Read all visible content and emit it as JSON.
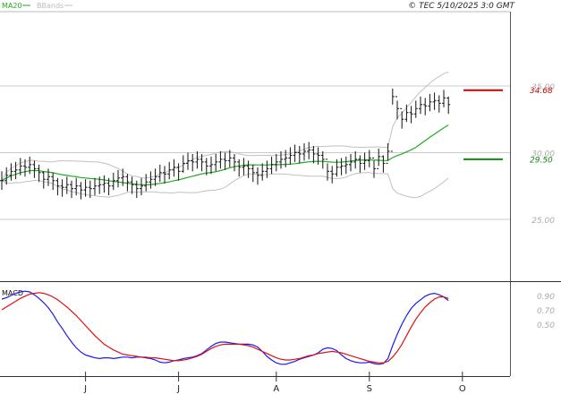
{
  "header": {
    "legend_ma20": "MA20",
    "legend_bbands": "BBands",
    "copyright": "© TEC 5/10/2025 3:0 GMT"
  },
  "macd_panel": {
    "title": "MACD"
  },
  "colors": {
    "bars": "#111111",
    "ma20": "#22aa22",
    "bbands": "#c0c0c0",
    "macd": "#1a1aee",
    "signal": "#dd1111",
    "resistance": "#cc0000",
    "support": "#118811",
    "grid": "#cccccc",
    "axis_text": "#aaaaaa"
  },
  "chart_data": [
    {
      "type": "ohlc",
      "ylim": [
        20.5,
        40.5
      ],
      "y_ticks": [
        "25.00",
        "30.00",
        "35.00"
      ],
      "y_tick_values": [
        25,
        30,
        35
      ],
      "x_ticks": [
        "J",
        "J",
        "A",
        "S",
        "O"
      ],
      "x_tick_index": [
        18,
        38,
        59,
        79,
        99
      ],
      "levels": [
        {
          "name": "resistance",
          "value": 34.68,
          "label": "34.68"
        },
        {
          "name": "support",
          "value": 29.5,
          "label": "29.50"
        }
      ],
      "close": [
        27.9,
        28.3,
        28.6,
        28.7,
        29.0,
        28.9,
        29.1,
        28.8,
        28.5,
        28.0,
        28.2,
        27.9,
        27.5,
        27.4,
        27.6,
        27.3,
        27.5,
        27.2,
        27.4,
        27.3,
        27.5,
        27.6,
        27.7,
        27.5,
        27.9,
        28.1,
        28.2,
        27.8,
        27.6,
        27.3,
        27.5,
        27.8,
        28.0,
        28.2,
        28.5,
        28.4,
        28.7,
        28.9,
        28.6,
        29.2,
        29.4,
        29.3,
        29.5,
        29.3,
        29.0,
        29.1,
        29.3,
        29.5,
        29.4,
        29.6,
        29.3,
        28.9,
        29.0,
        28.8,
        28.5,
        28.3,
        28.6,
        28.8,
        29.1,
        29.3,
        29.5,
        29.6,
        29.8,
        30.0,
        29.9,
        30.1,
        30.2,
        29.9,
        29.8,
        29.5,
        28.6,
        28.4,
        28.9,
        29.0,
        29.1,
        29.3,
        29.5,
        29.2,
        29.4,
        29.6,
        28.8,
        29.7,
        29.2,
        30.1,
        34.2,
        33.3,
        32.5,
        33.0,
        32.9,
        33.3,
        33.6,
        33.5,
        33.8,
        33.9,
        33.7,
        34.1,
        33.6
      ],
      "high": [
        28.6,
        28.9,
        29.2,
        29.3,
        29.6,
        29.5,
        29.7,
        29.4,
        29.1,
        28.6,
        28.8,
        28.5,
        28.1,
        28.0,
        28.2,
        27.9,
        28.1,
        27.8,
        28.0,
        27.9,
        28.1,
        28.2,
        28.3,
        28.1,
        28.5,
        28.7,
        28.8,
        28.4,
        28.2,
        27.9,
        28.1,
        28.4,
        28.6,
        28.8,
        29.1,
        29.0,
        29.3,
        29.5,
        29.2,
        29.8,
        30.0,
        29.9,
        30.1,
        29.9,
        29.6,
        29.7,
        29.9,
        30.1,
        30.0,
        30.2,
        29.9,
        29.5,
        29.6,
        29.4,
        29.1,
        28.9,
        29.2,
        29.4,
        29.7,
        29.9,
        30.1,
        30.2,
        30.4,
        30.6,
        30.5,
        30.7,
        30.8,
        30.5,
        30.4,
        30.1,
        29.2,
        29.0,
        29.5,
        29.6,
        29.7,
        29.9,
        30.1,
        29.8,
        30.0,
        30.2,
        29.4,
        30.3,
        29.8,
        30.7,
        34.8,
        33.9,
        33.1,
        33.6,
        33.5,
        33.9,
        34.2,
        34.1,
        34.4,
        34.5,
        34.3,
        34.7,
        34.2
      ],
      "low": [
        27.2,
        27.6,
        27.9,
        28.0,
        28.3,
        28.2,
        28.4,
        28.1,
        27.8,
        27.3,
        27.5,
        27.2,
        26.8,
        26.7,
        26.9,
        26.6,
        26.8,
        26.5,
        26.7,
        26.6,
        26.8,
        26.9,
        27.0,
        26.8,
        27.2,
        27.4,
        27.5,
        27.1,
        26.9,
        26.6,
        26.8,
        27.1,
        27.3,
        27.5,
        27.8,
        27.7,
        28.0,
        28.2,
        27.9,
        28.5,
        28.7,
        28.6,
        28.8,
        28.6,
        28.3,
        28.4,
        28.6,
        28.8,
        28.7,
        28.9,
        28.6,
        28.2,
        28.3,
        28.1,
        27.8,
        27.6,
        27.9,
        28.1,
        28.4,
        28.6,
        28.8,
        28.9,
        29.1,
        29.3,
        29.2,
        29.4,
        29.5,
        29.2,
        29.1,
        28.8,
        27.9,
        27.7,
        28.2,
        28.3,
        28.4,
        28.6,
        28.8,
        28.5,
        28.7,
        28.9,
        28.1,
        29.0,
        28.5,
        29.4,
        33.6,
        32.5,
        31.8,
        32.3,
        32.2,
        32.6,
        32.9,
        32.8,
        33.1,
        33.2,
        33.0,
        33.4,
        32.9
      ]
    },
    {
      "type": "line",
      "title": "MACD",
      "ylim": [
        -0.2,
        1.05
      ],
      "y_ticks": [
        "0.90",
        "0.70",
        "0.50"
      ],
      "y_tick_values": [
        0.9,
        0.7,
        0.5
      ],
      "series": [
        {
          "values": [
            0.85,
            0.87,
            0.9,
            0.93,
            0.95,
            0.96,
            0.95,
            0.91,
            0.86,
            0.8,
            0.73,
            0.64,
            0.53,
            0.44,
            0.34,
            0.25,
            0.17,
            0.11,
            0.07,
            0.05,
            0.03,
            0.02,
            0.03,
            0.03,
            0.02,
            0.03,
            0.04,
            0.04,
            0.03,
            0.04,
            0.04,
            0.03,
            0.02,
            0.0,
            -0.03,
            -0.04,
            -0.03,
            -0.01,
            0.0,
            0.02,
            0.03,
            0.04,
            0.06,
            0.09,
            0.14,
            0.19,
            0.23,
            0.25,
            0.25,
            0.24,
            0.23,
            0.22,
            0.22,
            0.22,
            0.21,
            0.18,
            0.12,
            0.05,
            0.0,
            -0.04,
            -0.06,
            -0.06,
            -0.04,
            -0.02,
            0.01,
            0.03,
            0.05,
            0.07,
            0.1,
            0.15,
            0.17,
            0.16,
            0.13,
            0.07,
            0.02,
            -0.01,
            -0.03,
            -0.04,
            -0.04,
            -0.03,
            -0.05,
            -0.06,
            -0.05,
            0.02,
            0.2,
            0.36,
            0.5,
            0.62,
            0.72,
            0.79,
            0.84,
            0.89,
            0.92,
            0.93,
            0.91,
            0.88,
            0.83
          ]
        },
        {
          "values": [
            0.7,
            0.74,
            0.78,
            0.82,
            0.86,
            0.89,
            0.92,
            0.93,
            0.94,
            0.93,
            0.91,
            0.88,
            0.84,
            0.79,
            0.74,
            0.68,
            0.62,
            0.55,
            0.48,
            0.41,
            0.34,
            0.28,
            0.22,
            0.18,
            0.14,
            0.11,
            0.08,
            0.07,
            0.06,
            0.05,
            0.04,
            0.04,
            0.03,
            0.03,
            0.02,
            0.01,
            0.0,
            -0.01,
            -0.01,
            0.0,
            0.01,
            0.03,
            0.05,
            0.08,
            0.12,
            0.16,
            0.19,
            0.21,
            0.22,
            0.22,
            0.22,
            0.22,
            0.21,
            0.2,
            0.18,
            0.15,
            0.12,
            0.09,
            0.06,
            0.03,
            0.01,
            0.0,
            0.0,
            0.01,
            0.02,
            0.04,
            0.06,
            0.07,
            0.09,
            0.1,
            0.11,
            0.12,
            0.11,
            0.1,
            0.08,
            0.06,
            0.04,
            0.02,
            0.0,
            -0.02,
            -0.03,
            -0.04,
            -0.04,
            -0.02,
            0.04,
            0.12,
            0.22,
            0.34,
            0.46,
            0.57,
            0.66,
            0.74,
            0.8,
            0.85,
            0.88,
            0.88,
            0.86
          ]
        }
      ]
    }
  ]
}
